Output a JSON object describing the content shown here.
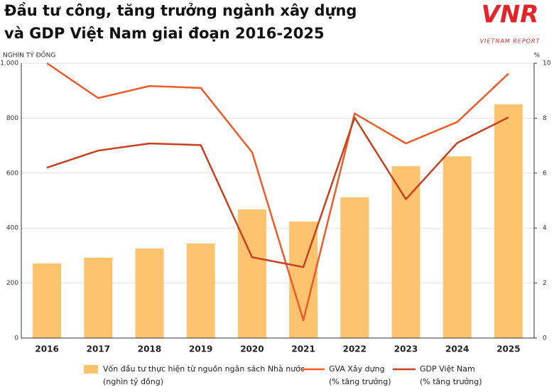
{
  "chart_data": {
    "type": "bar-line",
    "title": [
      "Đầu tư công, tăng trưởng ngành xây dựng",
      "và GDP Việt Nam giai đoạn 2016-2025"
    ],
    "logo": {
      "mark": "VNR",
      "name": "VIETNAM REPORT"
    },
    "y_label": "NGHÌN TỶ ĐỒNG",
    "y2_label": "%",
    "categories": [
      "2016",
      "2017",
      "2018",
      "2019",
      "2020",
      "2021",
      "2022",
      "2023",
      "2024",
      "2025"
    ],
    "ylim": [
      0,
      1000
    ],
    "yticks": [
      0,
      200,
      400,
      600,
      800,
      {
        "value": 1000,
        "label": "1.000"
      }
    ],
    "y2lim": [
      0,
      10
    ],
    "y2ticks": [
      0,
      2,
      4,
      6,
      8,
      10
    ],
    "grid": true,
    "series": [
      {
        "name": "Vốn đầu tư thực hiện từ nguồn ngân sách Nhà nước",
        "name_note": "(nghìn tỷ đồng)",
        "kind": "bar",
        "color": "#fdc36e",
        "values": [
          271,
          292,
          326,
          344,
          468,
          424,
          512,
          625,
          661,
          850
        ]
      },
      {
        "name": "GVA Xây dựng",
        "name_note": "(% tăng trưởng)",
        "kind": "line",
        "axis": "y2",
        "color": "#f05a28",
        "values": [
          10.0,
          8.73,
          9.17,
          9.1,
          6.76,
          0.65,
          8.17,
          7.08,
          7.86,
          9.62
        ]
      },
      {
        "name": "GDP Việt Nam",
        "name_note": "(% tăng trưởng)",
        "kind": "line",
        "axis": "y2",
        "color": "#c8401e",
        "values": [
          6.2,
          6.82,
          7.08,
          7.02,
          2.94,
          2.58,
          8.02,
          5.05,
          7.1,
          8.03
        ]
      }
    ]
  }
}
